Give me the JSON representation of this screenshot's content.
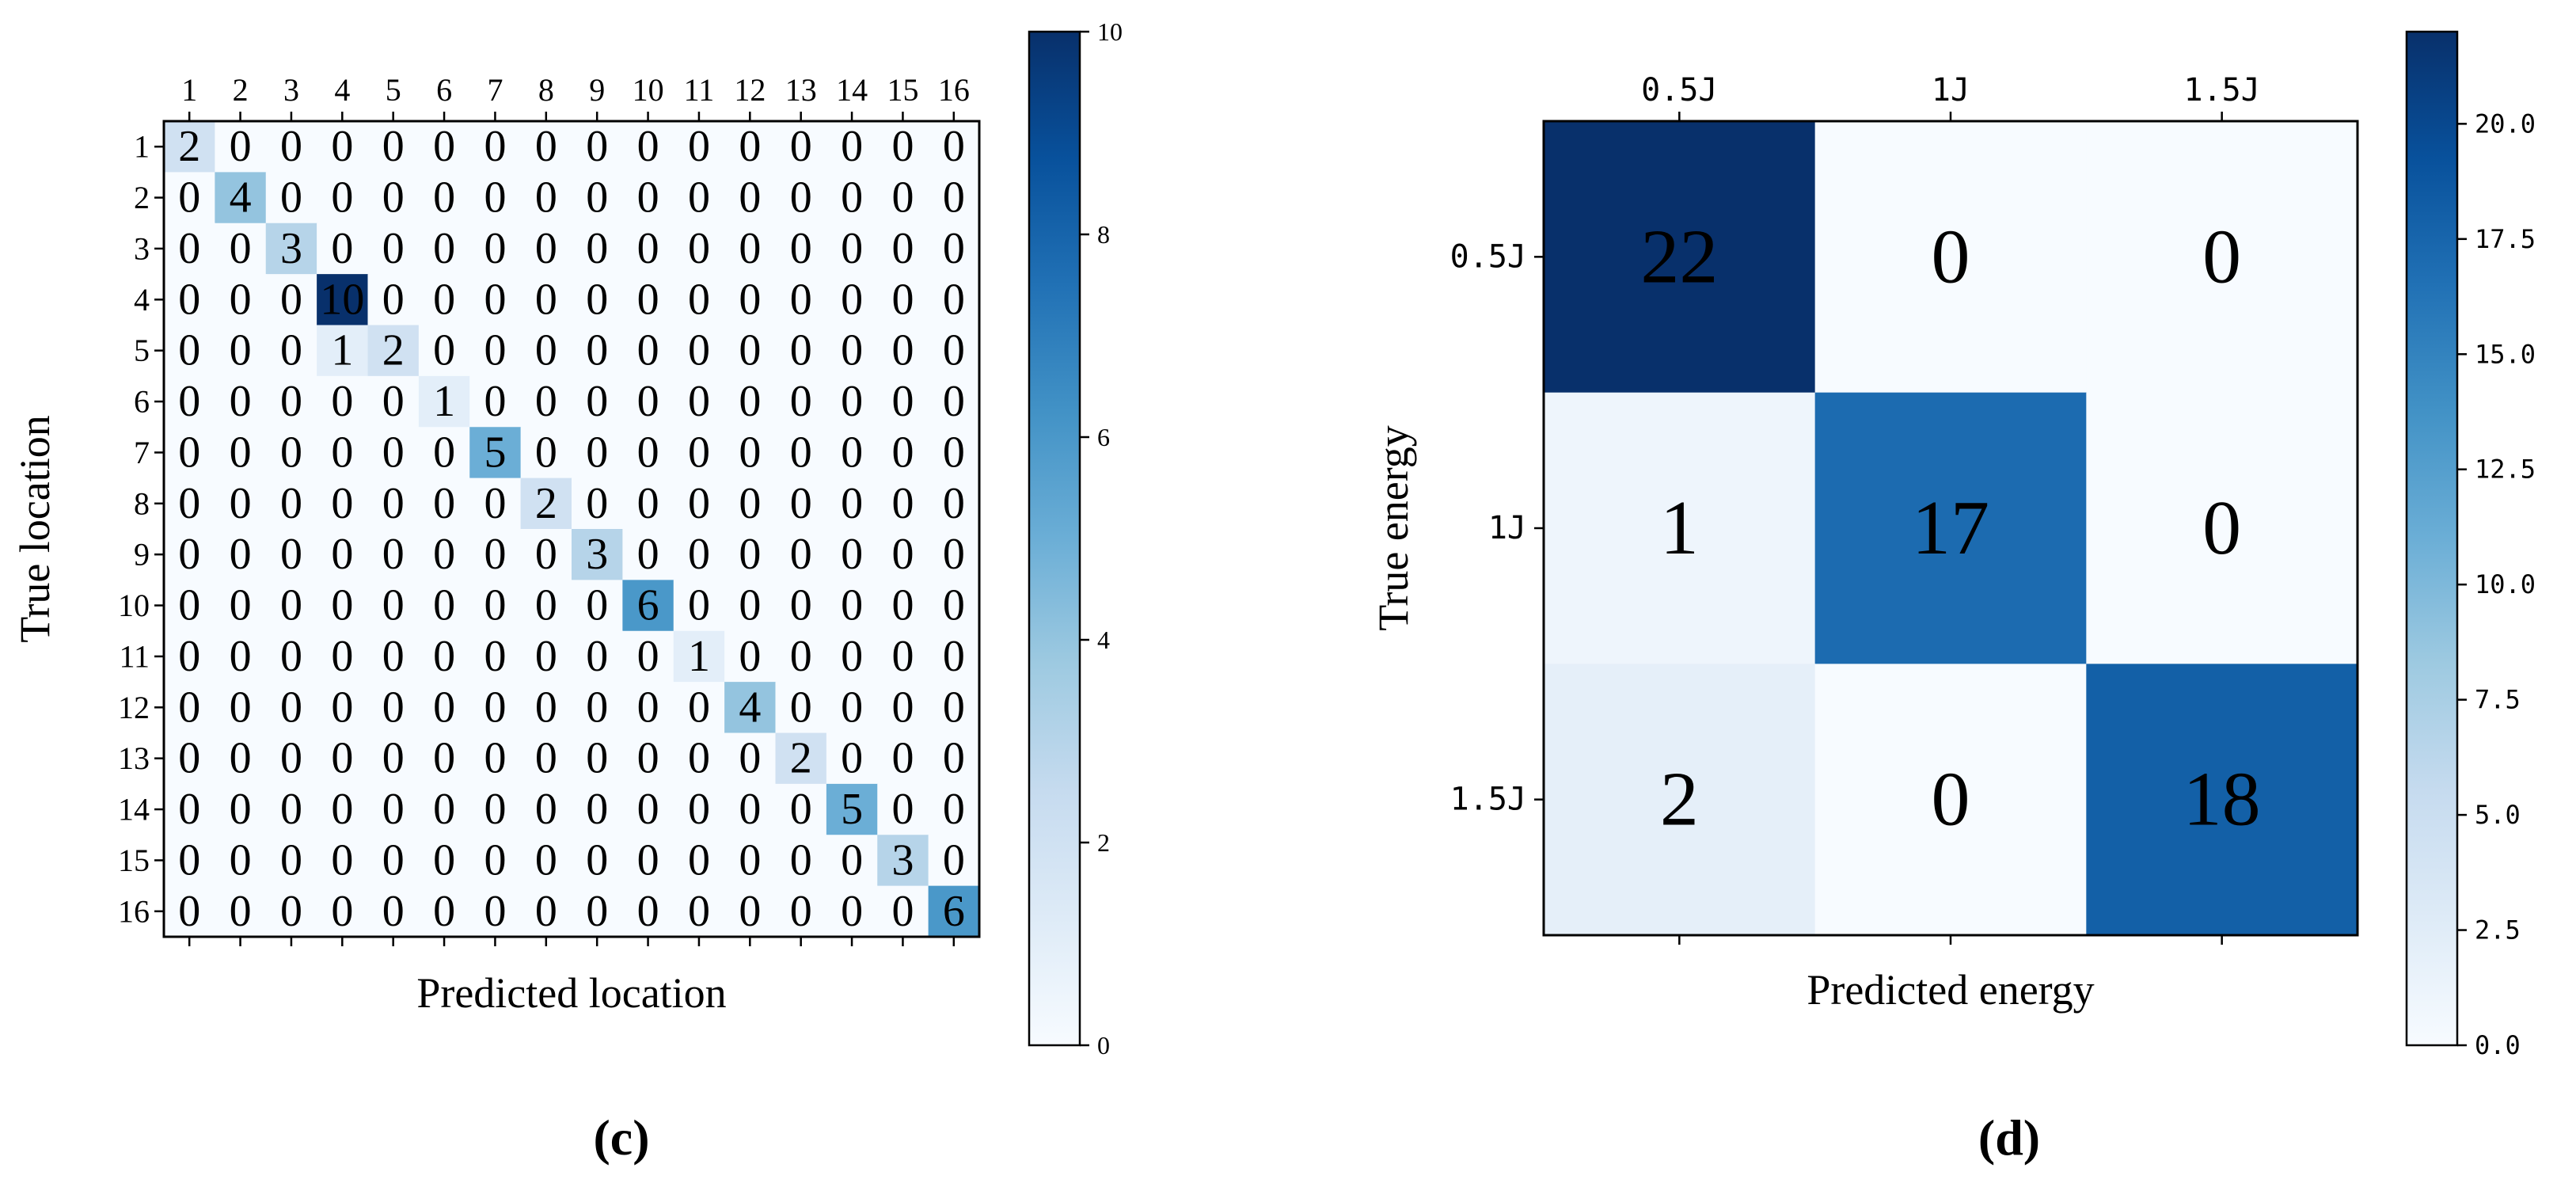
{
  "chart_data": [
    {
      "type": "heatmap",
      "panel_label": "(c)",
      "xlabel": "Predicted location",
      "ylabel": "True location",
      "x_tick_labels": [
        "1",
        "2",
        "3",
        "4",
        "5",
        "6",
        "7",
        "8",
        "9",
        "10",
        "11",
        "12",
        "13",
        "14",
        "15",
        "16"
      ],
      "y_tick_labels": [
        "1",
        "2",
        "3",
        "4",
        "5",
        "6",
        "7",
        "8",
        "9",
        "10",
        "11",
        "12",
        "13",
        "14",
        "15",
        "16"
      ],
      "matrix": [
        [
          2,
          0,
          0,
          0,
          0,
          0,
          0,
          0,
          0,
          0,
          0,
          0,
          0,
          0,
          0,
          0
        ],
        [
          0,
          4,
          0,
          0,
          0,
          0,
          0,
          0,
          0,
          0,
          0,
          0,
          0,
          0,
          0,
          0
        ],
        [
          0,
          0,
          3,
          0,
          0,
          0,
          0,
          0,
          0,
          0,
          0,
          0,
          0,
          0,
          0,
          0
        ],
        [
          0,
          0,
          0,
          10,
          0,
          0,
          0,
          0,
          0,
          0,
          0,
          0,
          0,
          0,
          0,
          0
        ],
        [
          0,
          0,
          0,
          1,
          2,
          0,
          0,
          0,
          0,
          0,
          0,
          0,
          0,
          0,
          0,
          0
        ],
        [
          0,
          0,
          0,
          0,
          0,
          1,
          0,
          0,
          0,
          0,
          0,
          0,
          0,
          0,
          0,
          0
        ],
        [
          0,
          0,
          0,
          0,
          0,
          0,
          5,
          0,
          0,
          0,
          0,
          0,
          0,
          0,
          0,
          0
        ],
        [
          0,
          0,
          0,
          0,
          0,
          0,
          0,
          2,
          0,
          0,
          0,
          0,
          0,
          0,
          0,
          0
        ],
        [
          0,
          0,
          0,
          0,
          0,
          0,
          0,
          0,
          3,
          0,
          0,
          0,
          0,
          0,
          0,
          0
        ],
        [
          0,
          0,
          0,
          0,
          0,
          0,
          0,
          0,
          0,
          6,
          0,
          0,
          0,
          0,
          0,
          0
        ],
        [
          0,
          0,
          0,
          0,
          0,
          0,
          0,
          0,
          0,
          0,
          1,
          0,
          0,
          0,
          0,
          0
        ],
        [
          0,
          0,
          0,
          0,
          0,
          0,
          0,
          0,
          0,
          0,
          0,
          4,
          0,
          0,
          0,
          0
        ],
        [
          0,
          0,
          0,
          0,
          0,
          0,
          0,
          0,
          0,
          0,
          0,
          0,
          2,
          0,
          0,
          0
        ],
        [
          0,
          0,
          0,
          0,
          0,
          0,
          0,
          0,
          0,
          0,
          0,
          0,
          0,
          5,
          0,
          0
        ],
        [
          0,
          0,
          0,
          0,
          0,
          0,
          0,
          0,
          0,
          0,
          0,
          0,
          0,
          0,
          3,
          0
        ],
        [
          0,
          0,
          0,
          0,
          0,
          0,
          0,
          0,
          0,
          0,
          0,
          0,
          0,
          0,
          0,
          6
        ]
      ],
      "color_range": [
        0,
        10
      ],
      "colorbar_ticks": [
        "0",
        "2",
        "4",
        "6",
        "8",
        "10"
      ],
      "colormap": "Blues",
      "x_ticks_position": "top"
    },
    {
      "type": "heatmap",
      "panel_label": "(d)",
      "xlabel": "Predicted energy",
      "ylabel": "True energy",
      "x_tick_labels": [
        "0.5J",
        "1J",
        "1.5J"
      ],
      "y_tick_labels": [
        "0.5J",
        "1J",
        "1.5J"
      ],
      "matrix": [
        [
          22,
          0,
          0
        ],
        [
          1,
          17,
          0
        ],
        [
          2,
          0,
          18
        ]
      ],
      "color_range": [
        0,
        22
      ],
      "colorbar_ticks": [
        "0.0",
        "2.5",
        "5.0",
        "7.5",
        "10.0",
        "12.5",
        "15.0",
        "17.5",
        "20.0"
      ],
      "colormap": "Blues",
      "x_ticks_position": "top"
    }
  ],
  "colors": {
    "blues_scale": [
      "#f7fbff",
      "#deebf7",
      "#c6dbef",
      "#9ecae1",
      "#6baed6",
      "#4292c6",
      "#2171b5",
      "#08519c",
      "#08306b"
    ]
  }
}
